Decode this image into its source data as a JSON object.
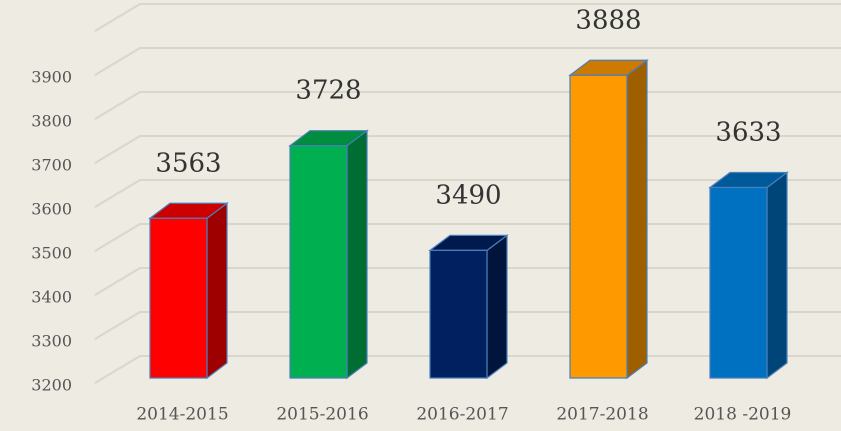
{
  "chart_data": {
    "type": "bar3d",
    "categories": [
      "2014-2015",
      "2015-2016",
      "2016-2017",
      "2017-2018",
      "2018 -2019"
    ],
    "values": [
      3563,
      3728,
      3490,
      3888,
      3633
    ],
    "colors": [
      "#ff0000",
      "#00b050",
      "#002060",
      "#ff9900",
      "#0070c0"
    ],
    "ylim": [
      3200,
      4000
    ],
    "yticks": [
      3200,
      3300,
      3400,
      3500,
      3600,
      3700,
      3800,
      3900
    ],
    "grid": true
  }
}
